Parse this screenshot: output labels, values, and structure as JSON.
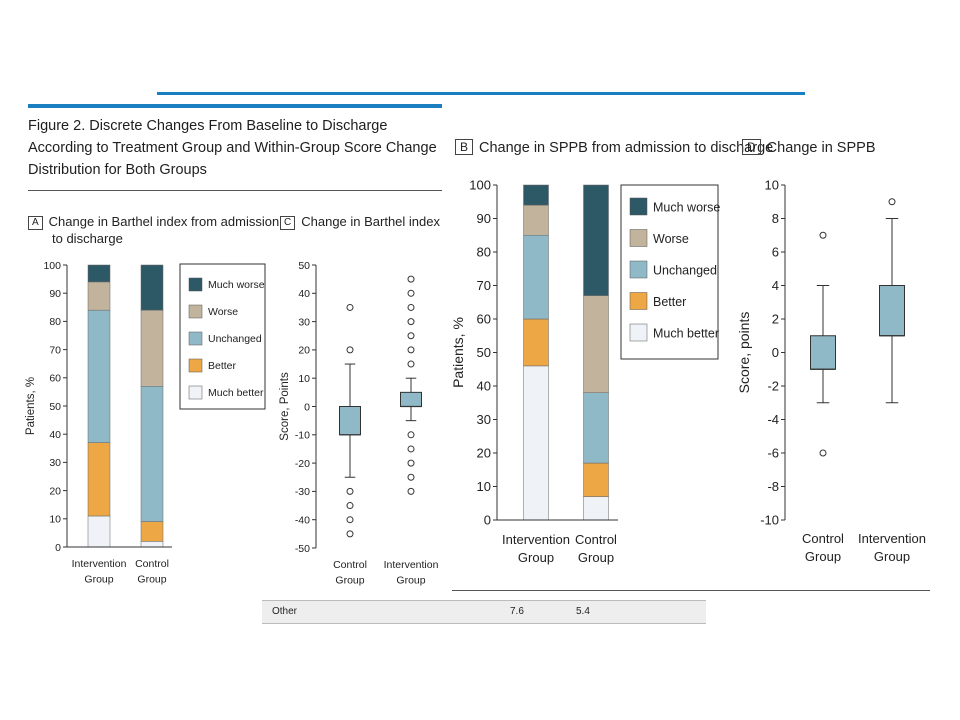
{
  "figure_title": "Figure 2. Discrete Changes From Baseline to Discharge According to Treatment Group and Within-Group Score Change Distribution for Both Groups",
  "table_row": {
    "label": "Other",
    "val1": "7.6",
    "val2": "5.4"
  },
  "colors": {
    "accent_rule": "#1a7fc0",
    "much_worse": "#2d5866",
    "worse": "#c2b49c",
    "unchanged": "#90b9c8",
    "better": "#eda744",
    "much_better": "#eff3f7",
    "box_fill": "#90b9c8"
  },
  "chart_data": [
    {
      "id": "A",
      "type": "bar",
      "stacked": true,
      "panel_label": "A",
      "title": "Change in Barthel index from admission to discharge",
      "title_line1": "Change in Barthel index from admission",
      "title_line2": "to discharge",
      "ylabel": "Patients, %",
      "ylim": [
        0,
        100
      ],
      "yticks": [
        0,
        10,
        20,
        30,
        40,
        50,
        60,
        70,
        80,
        90,
        100
      ],
      "categories": [
        [
          "Intervention",
          "Group"
        ],
        [
          "Control",
          "Group"
        ]
      ],
      "series": [
        {
          "name": "Much better",
          "values": [
            11,
            2
          ]
        },
        {
          "name": "Better",
          "values": [
            26,
            7
          ]
        },
        {
          "name": "Unchanged",
          "values": [
            47,
            48
          ]
        },
        {
          "name": "Worse",
          "values": [
            10,
            27
          ]
        },
        {
          "name": "Much worse",
          "values": [
            6,
            16
          ]
        }
      ],
      "legend": [
        "Much worse",
        "Worse",
        "Unchanged",
        "Better",
        "Much better"
      ],
      "legend_position": "right"
    },
    {
      "id": "C",
      "type": "box",
      "panel_label": "C",
      "title": "Change in Barthel index",
      "ylabel": "Score, Points",
      "ylim": [
        -50,
        50
      ],
      "yticks": [
        -50,
        -40,
        -30,
        -20,
        -10,
        0,
        10,
        20,
        30,
        40,
        50
      ],
      "categories": [
        [
          "Control",
          "Group"
        ],
        [
          "Intervention",
          "Group"
        ]
      ],
      "boxes": [
        {
          "whisker_low": -25,
          "q1": -10,
          "median": -10,
          "q3": 0,
          "whisker_high": 15,
          "outliers": [
            35,
            20,
            -30,
            -35,
            -40,
            -45
          ]
        },
        {
          "whisker_low": -5,
          "q1": 0,
          "median": 0,
          "q3": 5,
          "whisker_high": 10,
          "outliers": [
            45,
            40,
            35,
            30,
            25,
            20,
            15,
            -10,
            -15,
            -20,
            -25,
            -30
          ]
        }
      ]
    },
    {
      "id": "B",
      "type": "bar",
      "stacked": true,
      "panel_label": "B",
      "title": "Change in SPPB from admission to discharge",
      "ylabel": "Patients, %",
      "ylim": [
        0,
        100
      ],
      "yticks": [
        0,
        10,
        20,
        30,
        40,
        50,
        60,
        70,
        80,
        90,
        100
      ],
      "categories": [
        [
          "Intervention",
          "Group"
        ],
        [
          "Control",
          "Group"
        ]
      ],
      "series": [
        {
          "name": "Much better",
          "values": [
            46,
            7
          ]
        },
        {
          "name": "Better",
          "values": [
            14,
            10
          ]
        },
        {
          "name": "Unchanged",
          "values": [
            25,
            21
          ]
        },
        {
          "name": "Worse",
          "values": [
            9,
            29
          ]
        },
        {
          "name": "Much worse",
          "values": [
            6,
            33
          ]
        }
      ],
      "legend": [
        "Much worse",
        "Worse",
        "Unchanged",
        "Better",
        "Much better"
      ],
      "legend_position": "right"
    },
    {
      "id": "D",
      "type": "box",
      "panel_label": "D",
      "title": "Change in SPPB",
      "ylabel": "Score, points",
      "ylim": [
        -10,
        10
      ],
      "yticks": [
        -10,
        -8,
        -6,
        -4,
        -2,
        0,
        2,
        4,
        6,
        8,
        10
      ],
      "categories": [
        [
          "Control",
          "Group"
        ],
        [
          "Intervention",
          "Group"
        ]
      ],
      "boxes": [
        {
          "whisker_low": -3,
          "q1": -1,
          "median": -1,
          "q3": 1,
          "whisker_high": 4,
          "outliers": [
            7,
            -6
          ]
        },
        {
          "whisker_low": -3,
          "q1": 1,
          "median": 1,
          "q3": 4,
          "whisker_high": 8,
          "outliers": [
            9
          ]
        }
      ]
    }
  ]
}
